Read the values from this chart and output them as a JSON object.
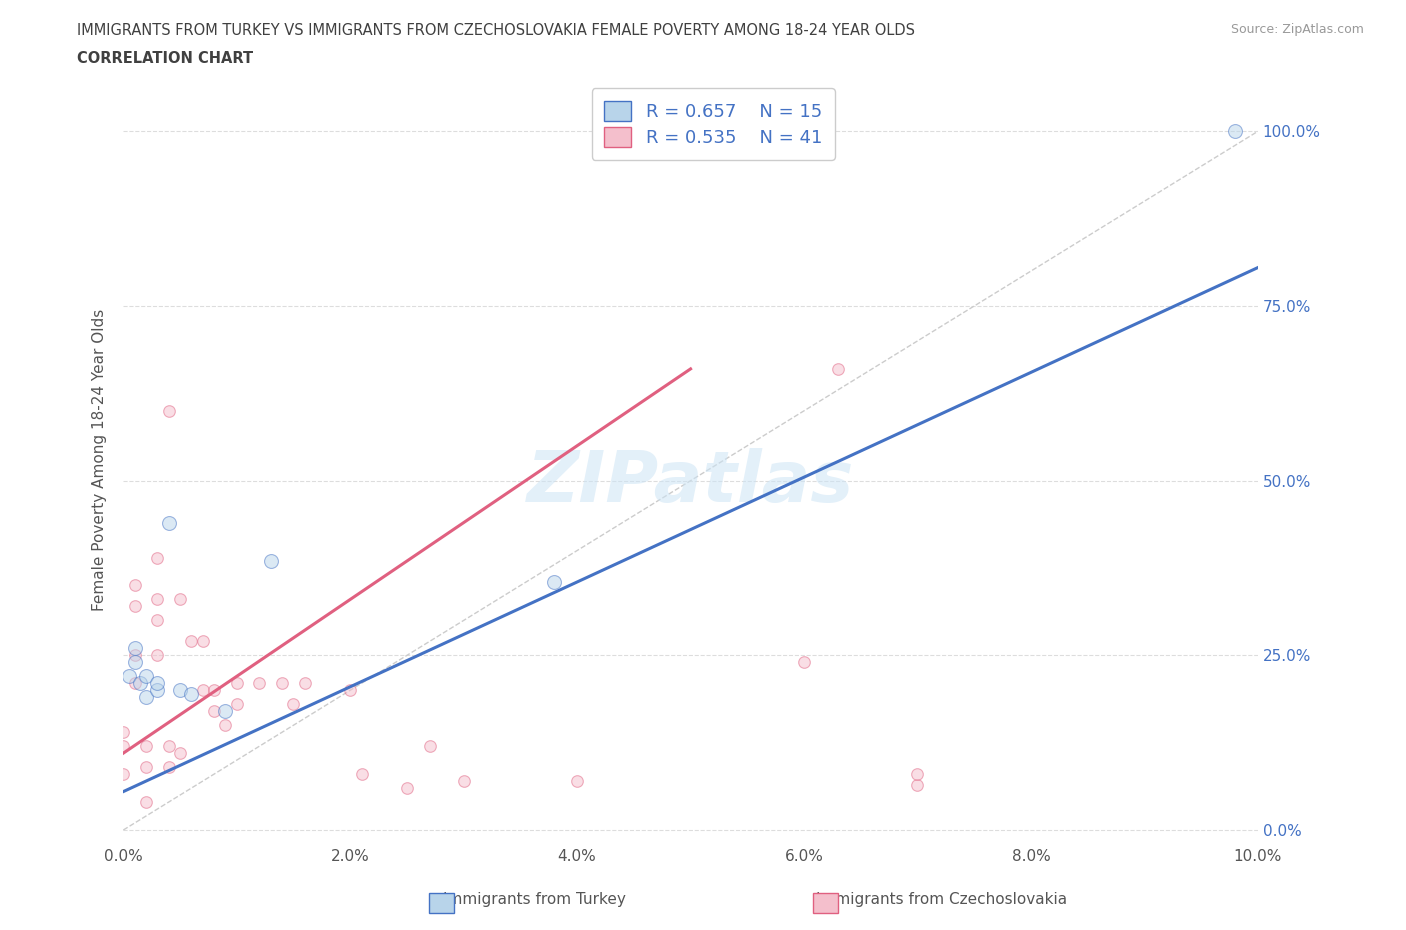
{
  "title_line1": "IMMIGRANTS FROM TURKEY VS IMMIGRANTS FROM CZECHOSLOVAKIA FEMALE POVERTY AMONG 18-24 YEAR OLDS",
  "title_line2": "CORRELATION CHART",
  "source": "Source: ZipAtlas.com",
  "ylabel": "Female Poverty Among 18-24 Year Olds",
  "xlim": [
    0.0,
    0.1
  ],
  "ylim": [
    -0.02,
    1.08
  ],
  "yticks": [
    0.0,
    0.25,
    0.5,
    0.75,
    1.0
  ],
  "ytick_labels": [
    "0.0%",
    "25.0%",
    "50.0%",
    "75.0%",
    "100.0%"
  ],
  "xticks": [
    0.0,
    0.02,
    0.04,
    0.06,
    0.08,
    0.1
  ],
  "xtick_labels": [
    "0.0%",
    "2.0%",
    "4.0%",
    "6.0%",
    "8.0%",
    "10.0%"
  ],
  "turkey_color": "#b8d4ea",
  "turkey_color_line": "#4472c4",
  "czech_color": "#f4bfcc",
  "czech_color_line": "#e06080",
  "turkey_R": 0.657,
  "turkey_N": 15,
  "czech_R": 0.535,
  "czech_N": 41,
  "legend_text_color": "#4472c4",
  "watermark": "ZIPatlas",
  "turkey_scatter_x": [
    0.0005,
    0.001,
    0.001,
    0.0015,
    0.002,
    0.002,
    0.003,
    0.003,
    0.004,
    0.005,
    0.006,
    0.009,
    0.013,
    0.038,
    0.098
  ],
  "turkey_scatter_y": [
    0.22,
    0.26,
    0.24,
    0.21,
    0.19,
    0.22,
    0.2,
    0.21,
    0.44,
    0.2,
    0.195,
    0.17,
    0.385,
    0.355,
    1.0
  ],
  "czech_scatter_x": [
    0.0,
    0.0,
    0.0,
    0.001,
    0.001,
    0.001,
    0.001,
    0.002,
    0.002,
    0.002,
    0.003,
    0.003,
    0.003,
    0.003,
    0.004,
    0.004,
    0.004,
    0.005,
    0.005,
    0.006,
    0.007,
    0.007,
    0.008,
    0.008,
    0.009,
    0.01,
    0.01,
    0.012,
    0.014,
    0.015,
    0.016,
    0.02,
    0.021,
    0.025,
    0.027,
    0.03,
    0.04,
    0.06,
    0.063,
    0.07,
    0.07
  ],
  "czech_scatter_y": [
    0.08,
    0.12,
    0.14,
    0.21,
    0.25,
    0.32,
    0.35,
    0.04,
    0.09,
    0.12,
    0.25,
    0.3,
    0.33,
    0.39,
    0.09,
    0.12,
    0.6,
    0.11,
    0.33,
    0.27,
    0.2,
    0.27,
    0.17,
    0.2,
    0.15,
    0.18,
    0.21,
    0.21,
    0.21,
    0.18,
    0.21,
    0.2,
    0.08,
    0.06,
    0.12,
    0.07,
    0.07,
    0.24,
    0.66,
    0.065,
    0.08
  ],
  "turkey_line_x": [
    0.0,
    0.1
  ],
  "turkey_line_y": [
    0.055,
    0.805
  ],
  "czech_line_x": [
    0.0,
    0.05
  ],
  "czech_line_y": [
    0.11,
    0.66
  ],
  "background_color": "#ffffff",
  "grid_color": "#dddddd",
  "title_color": "#404040",
  "scatter_size_turkey": 100,
  "scatter_size_czech": 70,
  "scatter_alpha": 0.5
}
